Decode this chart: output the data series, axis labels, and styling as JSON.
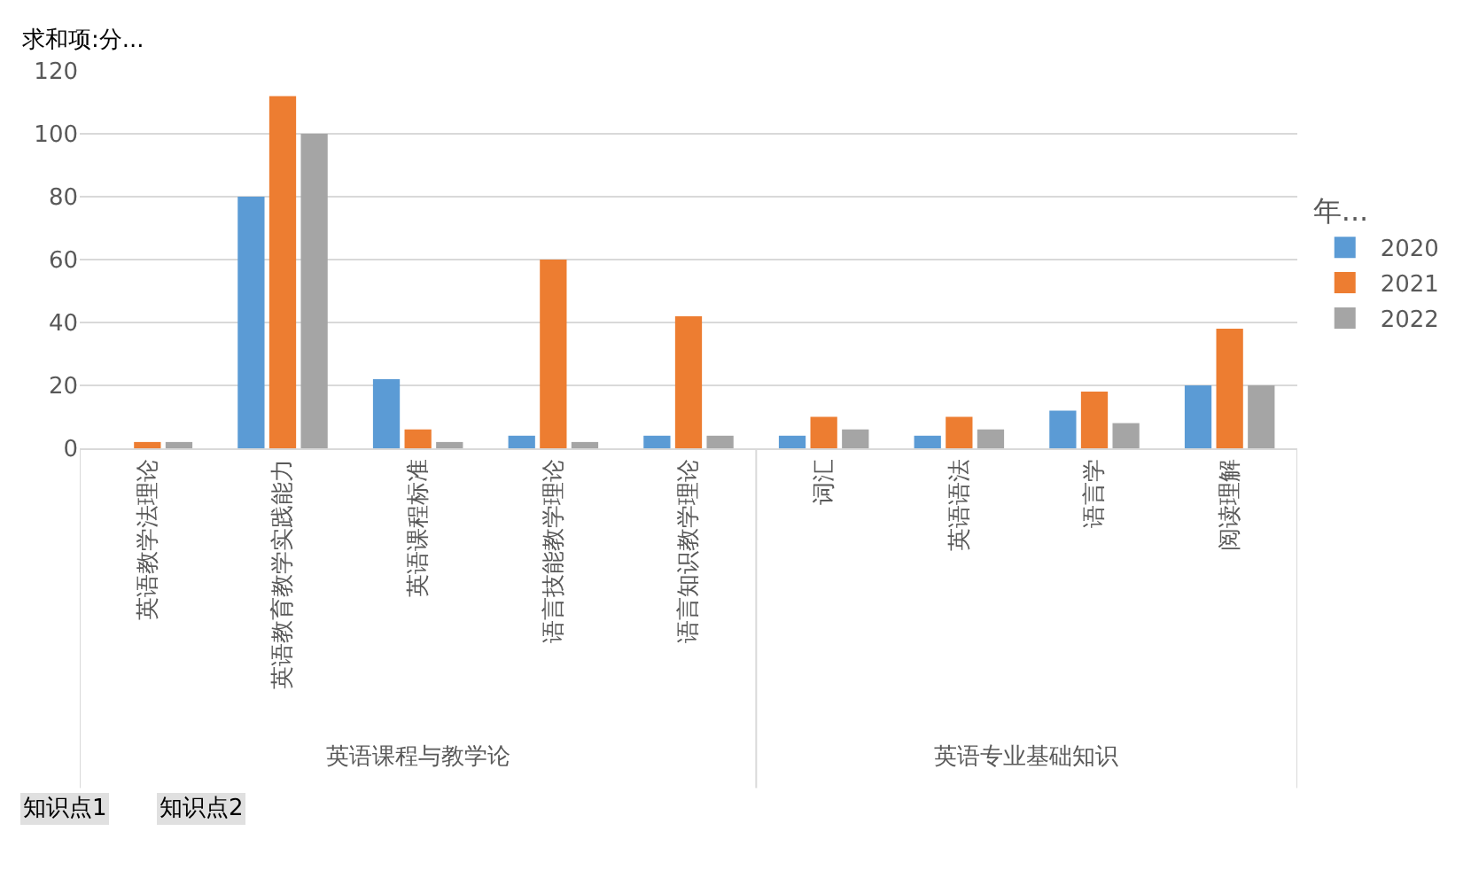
{
  "chart_data": {
    "type": "bar",
    "title": "求和项:分...",
    "legend_title": "年...",
    "categories": [
      "英语教学法理论",
      "英语教育教学实践能力",
      "英语课程标准",
      "语言技能教学理论",
      "语言知识教学理论",
      "词汇",
      "英语语法",
      "语言学",
      "阅读理解"
    ],
    "series": [
      {
        "name": "2020",
        "color": "#5b9bd5",
        "values": [
          null,
          80,
          22,
          4,
          4,
          4,
          4,
          12,
          20
        ]
      },
      {
        "name": "2021",
        "color": "#ed7d31",
        "values": [
          2,
          112,
          6,
          60,
          42,
          10,
          10,
          18,
          38
        ]
      },
      {
        "name": "2022",
        "color": "#a5a5a5",
        "values": [
          2,
          100,
          2,
          2,
          4,
          6,
          6,
          8,
          20
        ]
      }
    ],
    "ylim": [
      0,
      120
    ],
    "yticks": [
      0,
      20,
      40,
      60,
      80,
      100,
      120
    ],
    "grid": "y",
    "legend": "right",
    "annotations": [
      "英语课程与教学论",
      "英语专业基础知识",
      "知识点1",
      "知识点2"
    ]
  }
}
